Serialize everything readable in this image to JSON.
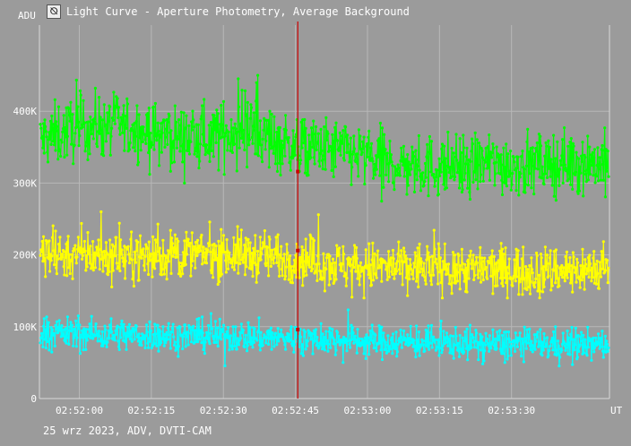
{
  "window": {
    "title": "Light Curve - Aperture Photometry, Average Background",
    "icon": "light-curve-app-icon"
  },
  "footer": {
    "caption": "25 wrz 2023, ADV, DVTI-CAM"
  },
  "colors": {
    "background": "#9b9b9b",
    "grid": "#b8b8b8",
    "marker": "#cc0000",
    "green": "#00ff00",
    "yellow": "#ffff00",
    "cyan": "#00ffff"
  },
  "chart_data": {
    "type": "line",
    "title": "Light Curve - Aperture Photometry, Average Background",
    "ylabel": "ADU",
    "xlabel": "UT",
    "y_ticks": [
      {
        "value": 0,
        "label": "0"
      },
      {
        "value": 100000,
        "label": "100K"
      },
      {
        "value": 200000,
        "label": "200K"
      },
      {
        "value": 300000,
        "label": "300K"
      },
      {
        "value": 400000,
        "label": "400K"
      }
    ],
    "x_ticks": [
      {
        "value": "02:52:00",
        "seconds": 0
      },
      {
        "value": "02:52:15",
        "seconds": 15
      },
      {
        "value": "02:52:30",
        "seconds": 30
      },
      {
        "value": "02:52:45",
        "seconds": 45
      },
      {
        "value": "02:53:00",
        "seconds": 60
      },
      {
        "value": "02:53:15",
        "seconds": 75
      },
      {
        "value": "02:53:30",
        "seconds": 90
      }
    ],
    "xlim": [
      -8.3,
      110.4
    ],
    "ylim": [
      0,
      520000
    ],
    "grid": true,
    "marker_time": 45.5,
    "series": [
      {
        "color_key": "green",
        "noise": 22000,
        "min": 265000,
        "max": 450000,
        "x": [
          -8,
          0,
          8,
          15,
          25,
          35,
          45,
          55,
          65,
          75,
          85,
          95,
          105,
          110
        ],
        "values": [
          360000,
          378000,
          382000,
          368000,
          362000,
          375000,
          350000,
          345000,
          325000,
          322000,
          328000,
          325000,
          330000,
          327000
        ]
      },
      {
        "color_key": "yellow",
        "noise": 17000,
        "min": 140000,
        "max": 260000,
        "x": [
          -8,
          0,
          15,
          30,
          40,
          45,
          55,
          65,
          75,
          85,
          95,
          105,
          110
        ],
        "values": [
          200000,
          201000,
          198000,
          202000,
          198000,
          196000,
          185000,
          182000,
          183000,
          180000,
          178000,
          180000,
          181000
        ]
      },
      {
        "color_key": "cyan",
        "noise": 11000,
        "min": 45000,
        "max": 135000,
        "x": [
          -8,
          0,
          15,
          30,
          45,
          60,
          75,
          90,
          105,
          110
        ],
        "values": [
          93000,
          90000,
          88000,
          87000,
          84000,
          80000,
          78000,
          76000,
          75000,
          75000
        ]
      }
    ],
    "marker_values": [
      {
        "color_key": "green",
        "value": 316000
      },
      {
        "color_key": "yellow",
        "value": 206000
      },
      {
        "color_key": "cyan",
        "value": 96000
      }
    ]
  }
}
